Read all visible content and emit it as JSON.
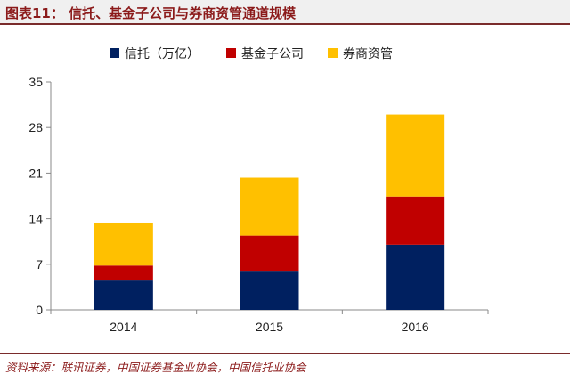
{
  "header": {
    "title": "图表11：  信托、基金子公司与券商资管通道规模"
  },
  "source": {
    "text": "资料来源：联讯证券，中国证券基金业协会，中国信托业协会"
  },
  "chart_data": {
    "type": "bar",
    "stacked": true,
    "categories": [
      "2014",
      "2015",
      "2016"
    ],
    "series": [
      {
        "name": "信托（万亿）",
        "color": "#002060",
        "values": [
          4.5,
          6.0,
          10.0
        ]
      },
      {
        "name": "基金子公司",
        "color": "#c00000",
        "values": [
          2.3,
          5.4,
          7.4
        ]
      },
      {
        "name": "券商资管",
        "color": "#ffc000",
        "values": [
          6.6,
          8.9,
          12.6
        ]
      }
    ],
    "yticks": [
      "0",
      "7",
      "14",
      "21",
      "28",
      "35"
    ],
    "ylim": [
      0,
      35
    ],
    "grid": false,
    "legend_position": "top"
  }
}
